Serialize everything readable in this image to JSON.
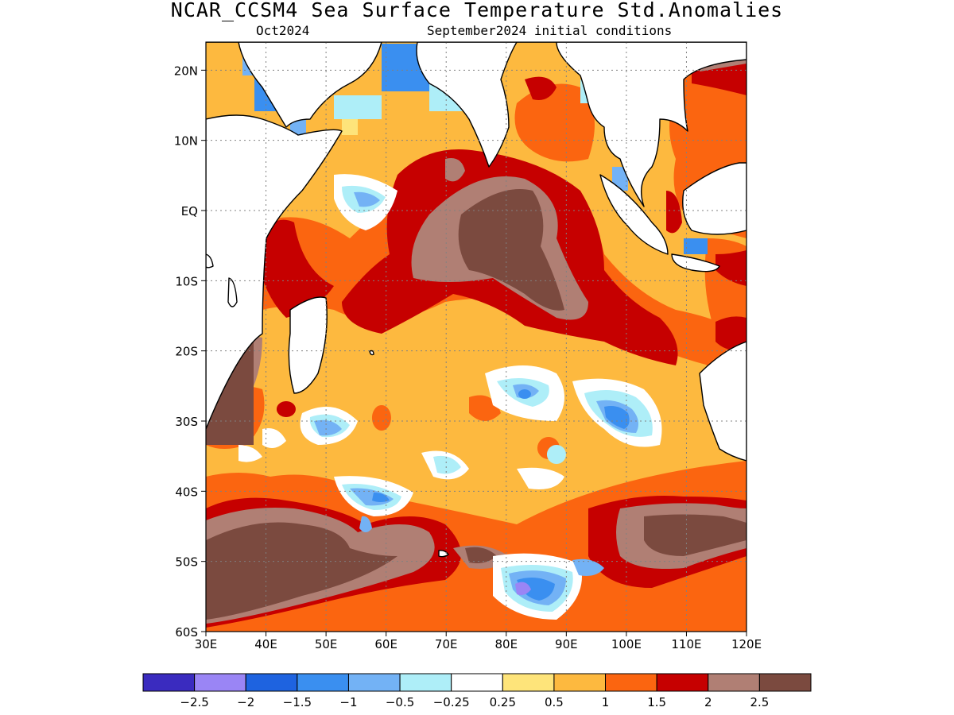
{
  "title": "NCAR_CCSM4 Sea Surface Temperature Std.Anomalies",
  "subtitle_left": "Oct2024",
  "subtitle_right": "September2024 initial conditions",
  "map": {
    "lon_range": [
      30,
      120
    ],
    "lat_range": [
      -60,
      24
    ],
    "lon_ticks": [
      "30E",
      "40E",
      "50E",
      "60E",
      "70E",
      "80E",
      "90E",
      "100E",
      "110E",
      "120E"
    ],
    "lat_ticks": [
      "20N",
      "10N",
      "EQ",
      "10S",
      "20S",
      "30S",
      "40S",
      "50S",
      "60S"
    ],
    "grid": true,
    "land_color": "#ffffff",
    "ocean_background": "#fdb93f"
  },
  "colorbar": {
    "colors": [
      "#3a2bbf",
      "#9a85f5",
      "#1e63e0",
      "#3a8ff0",
      "#73b2f5",
      "#aeeef8",
      "#ffffff",
      "#fee47a",
      "#fdb93f",
      "#fb6510",
      "#c60000",
      "#b07f74",
      "#7b4a3f"
    ],
    "labels": [
      "-2.5",
      "-2",
      "-1.5",
      "-1",
      "-0.5",
      "-0.25",
      "0.25",
      "0.5",
      "1",
      "1.5",
      "2",
      "2.5"
    ]
  }
}
